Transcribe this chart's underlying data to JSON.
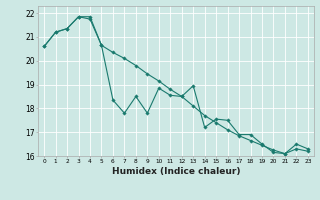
{
  "xlabel": "Humidex (Indice chaleur)",
  "bg_color": "#cde8e4",
  "grid_color": "#ffffff",
  "line_color": "#1a7a6e",
  "xlim": [
    -0.5,
    23.5
  ],
  "ylim": [
    16,
    22.3
  ],
  "xticks": [
    0,
    1,
    2,
    3,
    4,
    5,
    6,
    7,
    8,
    9,
    10,
    11,
    12,
    13,
    14,
    15,
    16,
    17,
    18,
    19,
    20,
    21,
    22,
    23
  ],
  "yticks": [
    16,
    17,
    18,
    19,
    20,
    21,
    22
  ],
  "line1_x": [
    0,
    1,
    2,
    3,
    4,
    5,
    6,
    7,
    8,
    9,
    10,
    11,
    12,
    13,
    14,
    15,
    16,
    17,
    18,
    19,
    20,
    21,
    22,
    23
  ],
  "line1_y": [
    20.6,
    21.2,
    21.35,
    21.85,
    21.85,
    20.65,
    18.35,
    17.8,
    18.5,
    17.8,
    18.85,
    18.55,
    18.5,
    18.95,
    17.2,
    17.55,
    17.5,
    16.9,
    16.9,
    16.5,
    16.15,
    16.1,
    16.5,
    16.3
  ],
  "line2_x": [
    0,
    1,
    2,
    3,
    4,
    5,
    6,
    7,
    8,
    9,
    10,
    11,
    12,
    13,
    14,
    15,
    16,
    17,
    18,
    19,
    20,
    21,
    22,
    23
  ],
  "line2_y": [
    20.6,
    21.2,
    21.35,
    21.85,
    21.75,
    20.65,
    20.35,
    20.1,
    19.8,
    19.45,
    19.15,
    18.8,
    18.5,
    18.1,
    17.7,
    17.4,
    17.1,
    16.85,
    16.65,
    16.45,
    16.25,
    16.1,
    16.3,
    16.2
  ]
}
